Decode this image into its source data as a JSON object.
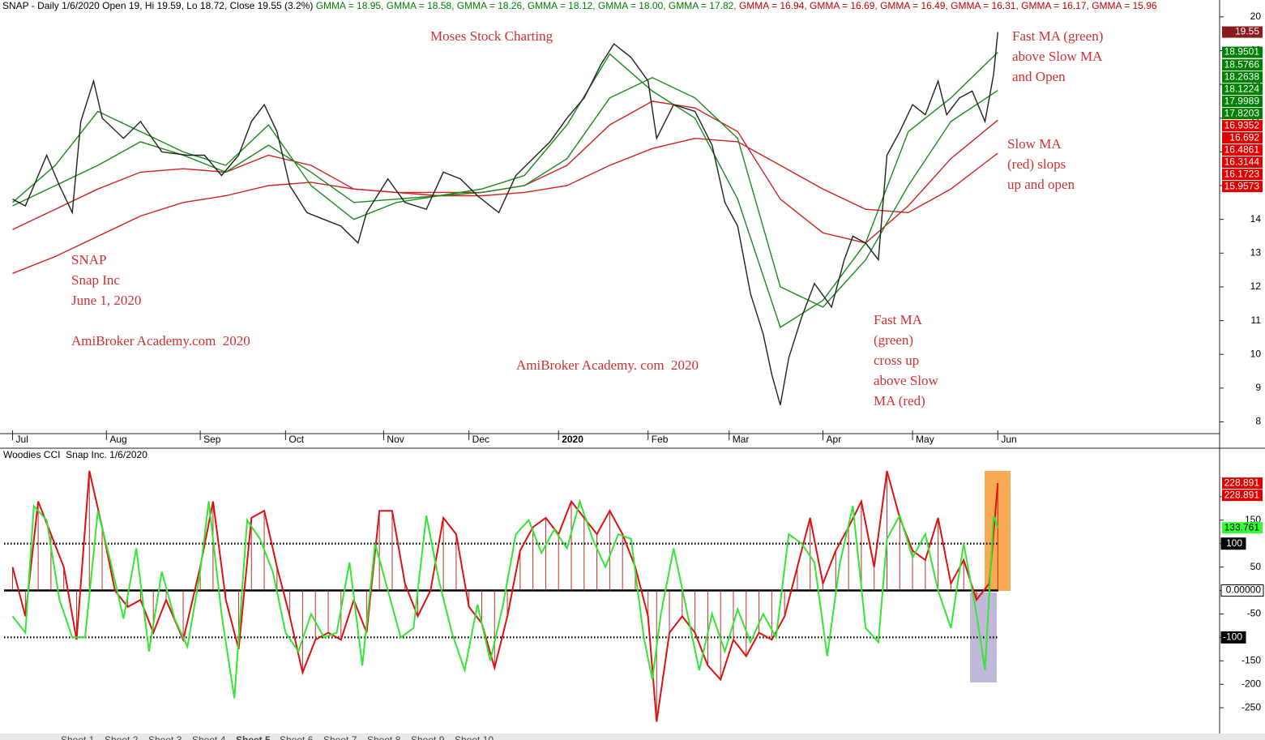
{
  "chart_data": [
    {
      "type": "line",
      "header": [
        {
          "text": "SNAP - Daily 1/6/2020 Open 19, Hi 19.59, Lo 18.72, Close 19.55 (3.2%)",
          "color": "#000000"
        },
        {
          "text": "GMMA = 18.95,",
          "color": "#008000"
        },
        {
          "text": "GMMA = 18.58,",
          "color": "#008000"
        },
        {
          "text": "GMMA = 18.26,",
          "color": "#008000"
        },
        {
          "text": "GMMA = 18.12,",
          "color": "#008000"
        },
        {
          "text": "GMMA = 18.00,",
          "color": "#008000"
        },
        {
          "text": "GMMA = 17.82,",
          "color": "#008000"
        },
        {
          "text": "GMMA = 16.94,",
          "color": "#c00000"
        },
        {
          "text": "GMMA = 16.69,",
          "color": "#c00000"
        },
        {
          "text": "GMMA = 16.49,",
          "color": "#c00000"
        },
        {
          "text": "GMMA = 16.31,",
          "color": "#c00000"
        },
        {
          "text": "GMMA = 16.17,",
          "color": "#c00000"
        },
        {
          "text": "GMMA = 15.96",
          "color": "#c00000"
        }
      ],
      "annotations": [
        [
          "Moses Stock Charting"
        ],
        [
          "SNAP",
          "Snap Inc",
          "June 1, 2020"
        ],
        [
          "AmiBroker Academy.com  2020"
        ],
        [
          "AmiBroker Academy. com  2020"
        ],
        [
          "Fast MA (green)",
          "above Slow MA",
          "and Open"
        ],
        [
          "Slow MA",
          "(red) slops",
          "up and open"
        ],
        [
          "Fast MA",
          "(green)",
          "cross up",
          "above Slow",
          "MA (red)"
        ]
      ],
      "xlim": [
        -2,
        283
      ],
      "xticks": [
        {
          "value": 0,
          "label": "Jul"
        },
        {
          "value": 22,
          "label": "Aug"
        },
        {
          "value": 44,
          "label": "Sep"
        },
        {
          "value": 64,
          "label": "Oct"
        },
        {
          "value": 87,
          "label": "Nov"
        },
        {
          "value": 107,
          "label": "Dec"
        },
        {
          "value": 128,
          "label": "2020"
        },
        {
          "value": 149,
          "label": "Feb"
        },
        {
          "value": 168,
          "label": "Mar"
        },
        {
          "value": 190,
          "label": "Apr"
        },
        {
          "value": 211,
          "label": "May"
        },
        {
          "value": 231,
          "label": "Jun"
        }
      ],
      "ylim": [
        7.7,
        20.5
      ],
      "yticks": [
        8,
        9,
        10,
        11,
        12,
        13,
        14,
        15,
        16,
        17,
        18,
        19,
        20
      ],
      "series": [
        {
          "color": "#d02020",
          "x": [
            0,
            10,
            20,
            30,
            40,
            50,
            60,
            70,
            80,
            90,
            100,
            110,
            120,
            130,
            140,
            150,
            160,
            170,
            180,
            190,
            200,
            210,
            220,
            231
          ],
          "values": [
            13.7,
            14.3,
            14.9,
            15.4,
            15.5,
            15.4,
            15.9,
            15.6,
            14.9,
            14.8,
            14.8,
            14.8,
            15.0,
            15.6,
            16.8,
            17.5,
            17.3,
            16.6,
            14.6,
            13.6,
            13.3,
            14.4,
            15.8,
            16.94
          ]
        },
        {
          "color": "#d02020",
          "x": [
            0,
            10,
            20,
            30,
            40,
            50,
            60,
            70,
            80,
            90,
            100,
            110,
            120,
            130,
            140,
            150,
            160,
            170,
            180,
            190,
            200,
            210,
            220,
            231
          ],
          "values": [
            12.4,
            12.9,
            13.5,
            14.1,
            14.5,
            14.7,
            15.0,
            15.1,
            14.9,
            14.8,
            14.7,
            14.7,
            14.8,
            15.0,
            15.6,
            16.1,
            16.4,
            16.3,
            15.6,
            14.9,
            14.3,
            14.2,
            14.9,
            15.96
          ]
        },
        {
          "color": "#1a8a1a",
          "x": [
            0,
            10,
            20,
            30,
            40,
            50,
            60,
            70,
            80,
            90,
            100,
            110,
            120,
            130,
            140,
            150,
            160,
            170,
            180,
            190,
            200,
            210,
            220,
            231
          ],
          "values": [
            14.5,
            15.6,
            17.2,
            16.6,
            16.0,
            15.6,
            16.8,
            15.0,
            14.0,
            14.5,
            14.7,
            14.9,
            15.3,
            16.8,
            18.9,
            17.8,
            17.0,
            14.6,
            10.8,
            11.6,
            13.3,
            16.6,
            17.6,
            18.95
          ]
        },
        {
          "color": "#1a8a1a",
          "x": [
            0,
            10,
            20,
            30,
            40,
            50,
            60,
            70,
            80,
            90,
            100,
            110,
            120,
            130,
            140,
            150,
            160,
            170,
            180,
            190,
            200,
            210,
            220,
            231
          ],
          "values": [
            14.4,
            15.0,
            15.6,
            16.3,
            15.9,
            15.4,
            16.2,
            15.4,
            14.5,
            14.6,
            14.7,
            14.8,
            15.0,
            15.8,
            17.6,
            18.2,
            17.6,
            16.4,
            12.0,
            11.4,
            12.8,
            15.0,
            16.9,
            17.82
          ]
        },
        {
          "color": "#202020",
          "x": [
            0,
            3,
            6,
            8,
            11,
            14,
            16,
            19,
            21,
            26,
            30,
            35,
            41,
            45,
            49,
            53,
            56,
            59,
            62,
            65,
            69,
            73,
            77,
            81,
            83,
            88,
            92,
            97,
            101,
            105,
            109,
            114,
            118,
            122,
            126,
            130,
            134,
            138,
            141,
            145,
            149,
            151,
            155,
            160,
            164,
            167,
            170,
            173,
            176,
            178,
            180,
            182,
            185,
            188,
            192,
            195,
            197,
            200,
            203,
            205,
            208,
            211,
            214,
            217,
            219,
            222,
            225,
            228,
            230,
            231
          ],
          "values": [
            14.6,
            14.4,
            15.3,
            15.9,
            15.0,
            14.2,
            16.9,
            18.1,
            17.0,
            16.4,
            16.9,
            16.0,
            15.9,
            15.9,
            15.3,
            15.9,
            16.9,
            17.4,
            16.6,
            15.0,
            14.2,
            14.0,
            13.8,
            13.3,
            14.2,
            15.2,
            14.5,
            14.3,
            15.4,
            15.2,
            14.7,
            14.2,
            15.3,
            15.8,
            16.3,
            17.0,
            17.6,
            18.6,
            19.2,
            18.8,
            18.1,
            16.4,
            17.4,
            17.2,
            16.2,
            14.5,
            13.8,
            11.8,
            10.6,
            9.4,
            8.5,
            9.9,
            11.1,
            12.1,
            11.4,
            12.8,
            13.5,
            13.3,
            12.8,
            15.9,
            16.6,
            17.4,
            17.1,
            18.1,
            17.1,
            17.6,
            17.8,
            16.9,
            18.3,
            19.55
          ]
        }
      ],
      "value_markers": [
        {
          "value": 19.55,
          "color": "#8b1a1a"
        },
        {
          "value": 18.9501,
          "color": "#008000"
        },
        {
          "value": 18.5766,
          "color": "#008000"
        },
        {
          "value": 18.2638,
          "color": "#008000"
        },
        {
          "value": 18.1224,
          "color": "#008000"
        },
        {
          "value": 17.9989,
          "color": "#008000"
        },
        {
          "value": 17.8203,
          "color": "#008000"
        },
        {
          "value": 16.9352,
          "color": "#e00000"
        },
        {
          "value": 16.692,
          "color": "#e00000"
        },
        {
          "value": 16.4861,
          "color": "#e00000"
        },
        {
          "value": 16.3144,
          "color": "#e00000"
        },
        {
          "value": 16.1723,
          "color": "#e00000"
        },
        {
          "value": 15.9573,
          "color": "#e00000"
        }
      ]
    },
    {
      "type": "line",
      "title": "Woodies CCI  Snap Inc. 1/6/2020",
      "xlim": [
        -2,
        283
      ],
      "ylim": [
        -305,
        300
      ],
      "yticks": [
        -250,
        -200,
        -150,
        -100,
        -50,
        {
          "value": 0,
          "label": "0.00000"
        },
        50,
        100,
        150,
        200
      ],
      "ref_lines": [
        100,
        0,
        -100
      ],
      "series": [
        {
          "color": "#e01010",
          "bars": true,
          "x": [
            0,
            3,
            6,
            9,
            12,
            15,
            18,
            21,
            24,
            27,
            30,
            33,
            36,
            40,
            44,
            47,
            50,
            53,
            56,
            59,
            62,
            65,
            68,
            71,
            74,
            77,
            80,
            83,
            86,
            89,
            92,
            95,
            98,
            101,
            104,
            107,
            110,
            113,
            116,
            119,
            122,
            125,
            128,
            131,
            134,
            137,
            140,
            143,
            146,
            149,
            151,
            154,
            157,
            160,
            163,
            166,
            169,
            172,
            175,
            178,
            181,
            184,
            187,
            190,
            193,
            196,
            199,
            202,
            205,
            208,
            211,
            214,
            217,
            220,
            223,
            226,
            229,
            231
          ],
          "values": [
            50,
            -55,
            190,
            120,
            50,
            -105,
            255,
            135,
            0,
            -35,
            -20,
            -90,
            -20,
            -105,
            50,
            190,
            -20,
            -125,
            155,
            170,
            50,
            -55,
            -175,
            -105,
            -90,
            -105,
            -20,
            -90,
            170,
            170,
            15,
            -55,
            0,
            155,
            120,
            -35,
            -70,
            -165,
            -55,
            85,
            135,
            155,
            120,
            190,
            155,
            120,
            170,
            120,
            50,
            -55,
            -280,
            -90,
            -55,
            -90,
            -160,
            -190,
            -105,
            -140,
            -90,
            -105,
            -55,
            50,
            155,
            15,
            85,
            135,
            190,
            50,
            255,
            155,
            85,
            65,
            155,
            15,
            65,
            -20,
            15,
            228.891
          ]
        },
        {
          "color": "#33e633",
          "x": [
            0,
            3,
            5,
            8,
            11,
            14,
            17,
            20,
            23,
            26,
            29,
            32,
            35,
            38,
            41,
            44,
            46,
            49,
            52,
            55,
            58,
            61,
            64,
            67,
            70,
            73,
            76,
            79,
            82,
            85,
            88,
            91,
            94,
            97,
            100,
            103,
            106,
            109,
            112,
            115,
            118,
            121,
            124,
            127,
            130,
            133,
            136,
            139,
            142,
            145,
            148,
            150,
            152,
            155,
            158,
            161,
            164,
            167,
            170,
            173,
            176,
            179,
            182,
            185,
            188,
            191,
            194,
            197,
            200,
            203,
            205,
            208,
            211,
            214,
            217,
            220,
            223,
            226,
            228,
            230,
            231
          ],
          "values": [
            -55,
            -90,
            180,
            150,
            -20,
            -100,
            -100,
            170,
            60,
            -60,
            90,
            -130,
            40,
            -60,
            -120,
            40,
            190,
            -50,
            -230,
            150,
            110,
            40,
            -90,
            -130,
            -50,
            -100,
            -90,
            60,
            -160,
            100,
            0,
            -100,
            -80,
            160,
            20,
            -90,
            -170,
            -30,
            -150,
            -30,
            120,
            150,
            80,
            130,
            90,
            190,
            110,
            50,
            120,
            110,
            -100,
            -190,
            -50,
            90,
            -40,
            -170,
            -50,
            -130,
            -40,
            -110,
            -50,
            -100,
            120,
            100,
            60,
            -140,
            60,
            180,
            -80,
            -110,
            110,
            160,
            70,
            120,
            0,
            -80,
            100,
            -50,
            -170,
            160,
            133.761
          ]
        }
      ],
      "value_markers": [
        {
          "value": 228.891,
          "color": "#e00000"
        },
        {
          "value": 228.891,
          "color": "#e00000"
        },
        {
          "value": 133.761,
          "color": "#33ff33"
        }
      ]
    }
  ],
  "tabs": [
    "Sheet 1",
    "Sheet 2",
    "Sheet 3",
    "Sheet 4",
    "Sheet 5",
    "Sheet 6",
    "Sheet 7",
    "Sheet 8",
    "Sheet 9",
    "Sheet 10"
  ]
}
